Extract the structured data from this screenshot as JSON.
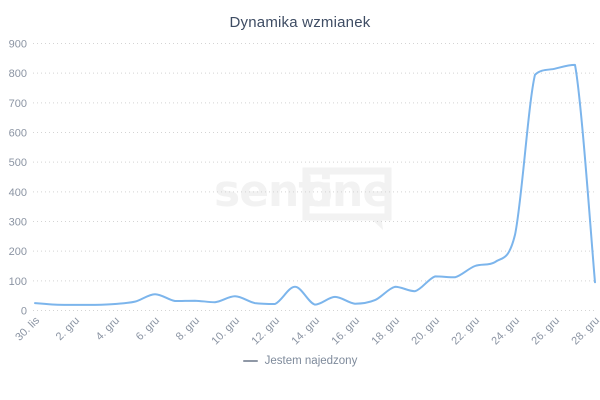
{
  "title": "Dynamika wzmianek",
  "legend": {
    "series_label": "Jestem najedzony"
  },
  "watermark": {
    "text_left": "senti",
    "text_right": "one"
  },
  "colors": {
    "line": "#7cb5ec",
    "title_text": "#3e4c63",
    "axis_label": "#8b94a3",
    "grid": "#d4d4d4",
    "legend_text": "#7e8a9b",
    "legend_marker": "#8f98a6",
    "watermark": "#f2f2f2",
    "background": "#ffffff"
  },
  "chart_data": {
    "type": "line",
    "title": "Dynamika wzmianek",
    "categories": [
      "30. lis",
      "1. gru",
      "2. gru",
      "3. gru",
      "4. gru",
      "5. gru",
      "6. gru",
      "7. gru",
      "8. gru",
      "9. gru",
      "10. gru",
      "11. gru",
      "12. gru",
      "13. gru",
      "14. gru",
      "15. gru",
      "16. gru",
      "17. gru",
      "18. gru",
      "19. gru",
      "20. gru",
      "21. gru",
      "22. gru",
      "23. gru",
      "24. gru",
      "25. gru",
      "26. gru",
      "27. gru",
      "28. gru"
    ],
    "x_tick_every": 2,
    "x_tick_labels": [
      "30. lis",
      "2. gru",
      "4. gru",
      "6. gru",
      "8. gru",
      "10. gru",
      "12. gru",
      "14. gru",
      "16. gru",
      "18. gru",
      "20. gru",
      "22. gru",
      "24. gru",
      "26. gru",
      "28. gru"
    ],
    "series": [
      {
        "name": "Jestem najedzony",
        "color": "#7cb5ec",
        "values": [
          25,
          20,
          19,
          19,
          22,
          30,
          55,
          32,
          33,
          28,
          48,
          25,
          22,
          80,
          20,
          46,
          23,
          35,
          80,
          65,
          115,
          112,
          150,
          163,
          255,
          795,
          815,
          828,
          95
        ]
      }
    ],
    "ylim": [
      0,
      900
    ],
    "y_tick_step": 100,
    "ylabel": "",
    "xlabel": "",
    "grid": "dotted-horizontal",
    "legend_position": "bottom-center",
    "curve": "spline"
  }
}
